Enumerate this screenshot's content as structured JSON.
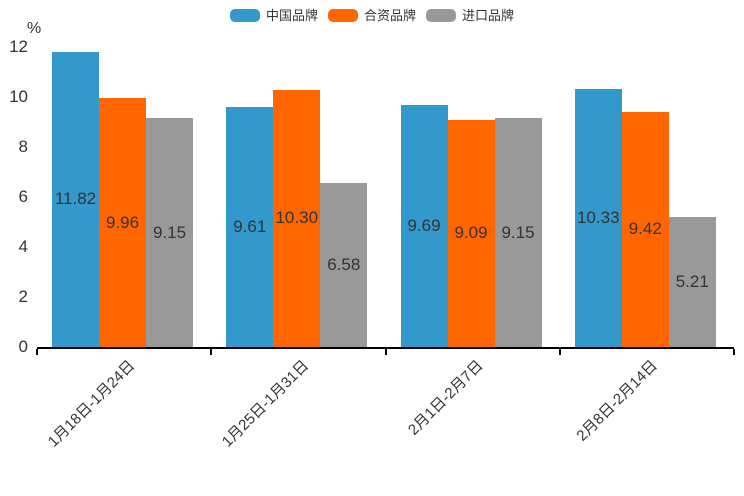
{
  "chart_data": {
    "type": "bar",
    "title": "",
    "categories": [
      "1月18日-1月24日",
      "1月25日-1月31日",
      "2月1日-2月7日",
      "2月8日-2月14日"
    ],
    "series": [
      {
        "name": "中国品牌",
        "color": "#3398CC",
        "values": [
          11.82,
          9.61,
          9.69,
          10.33
        ]
      },
      {
        "name": "合资品牌",
        "color": "#FF6600",
        "values": [
          9.96,
          10.3,
          9.09,
          9.42
        ]
      },
      {
        "name": "进口品牌",
        "color": "#999999",
        "values": [
          9.15,
          6.58,
          9.15,
          5.21
        ]
      }
    ],
    "xlabel": "",
    "ylabel": "%",
    "ylim": [
      0,
      12
    ],
    "yticks": [
      0,
      2,
      4,
      6,
      8,
      10,
      12
    ],
    "grid": false,
    "legend_position": "top",
    "value_labels": true,
    "value_label_decimals": 2,
    "xtick_rotation": 45,
    "axis_color": "#000000",
    "text_color": "#333333"
  }
}
